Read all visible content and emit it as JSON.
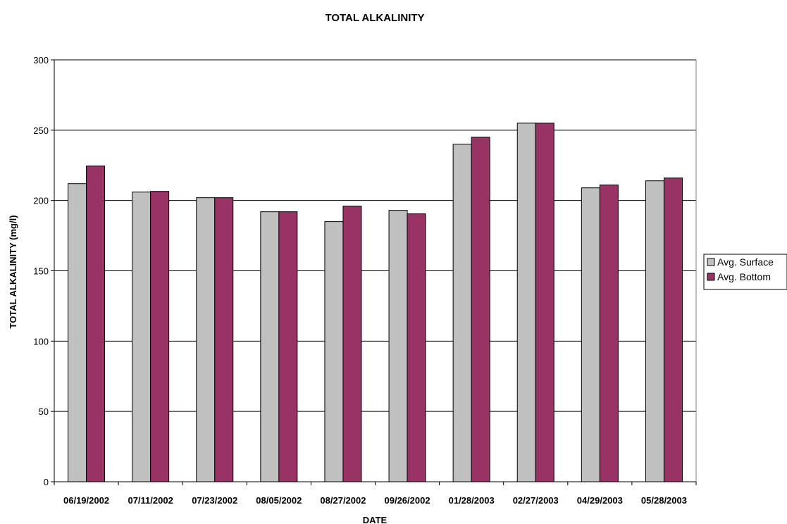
{
  "chart_data": {
    "type": "bar",
    "title": "TOTAL ALKALINITY",
    "xlabel": "DATE",
    "ylabel": "TOTAL ALKALINITY (mg/l)",
    "ylim": [
      0,
      300
    ],
    "yticks": [
      0,
      50,
      100,
      150,
      200,
      250,
      300
    ],
    "grid": true,
    "legend_position": "right",
    "categories": [
      "06/19/2002",
      "07/11/2002",
      "07/23/2002",
      "08/05/2002",
      "08/27/2002",
      "09/26/2002",
      "01/28/2003",
      "02/27/2003",
      "04/29/2003",
      "05/28/2003"
    ],
    "series": [
      {
        "name": "Avg. Surface",
        "color": "#c0c0c0",
        "values": [
          212,
          206,
          202,
          192,
          185,
          193,
          240,
          255,
          209,
          214
        ]
      },
      {
        "name": "Avg. Bottom",
        "color": "#993366",
        "values": [
          224.5,
          206.5,
          202,
          192,
          196,
          190.5,
          245,
          255,
          211,
          216
        ]
      }
    ]
  }
}
